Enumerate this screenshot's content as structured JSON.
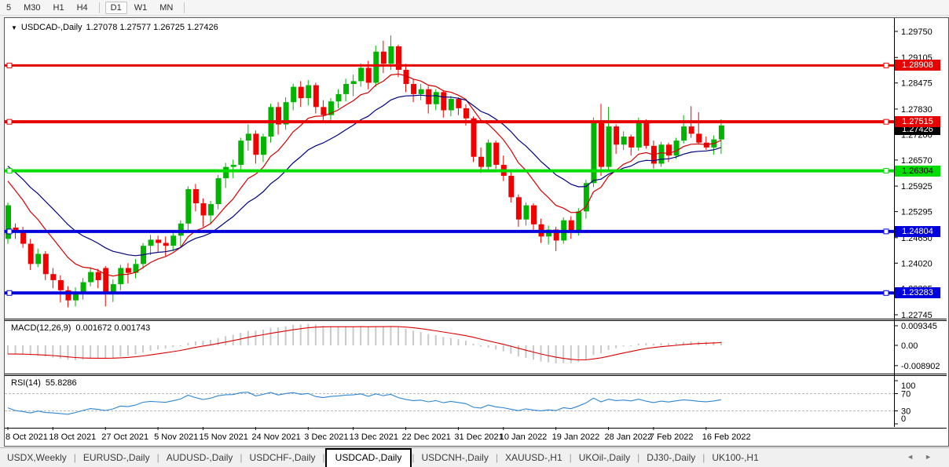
{
  "toolbar": {
    "timeframes": [
      {
        "label": "5",
        "active": false
      },
      {
        "label": "M30",
        "active": false
      },
      {
        "label": "H1",
        "active": false
      },
      {
        "label": "H4",
        "active": false
      },
      {
        "label": "D1",
        "active": true
      },
      {
        "label": "W1",
        "active": false
      },
      {
        "label": "MN",
        "active": false
      }
    ]
  },
  "chart": {
    "symbol_label": "USDCAD-,Daily",
    "ohlc_label": "1.27078 1.27577 1.26725 1.27426"
  },
  "price_axis": {
    "ticks": [
      "1.29750",
      "1.29105",
      "1.28475",
      "1.27830",
      "1.27200",
      "1.26570",
      "1.25925",
      "1.25295",
      "1.24650",
      "1.24020",
      "1.23395",
      "1.22745"
    ],
    "current_price": {
      "value": "1.27426",
      "bg": "#000000",
      "fg": "#ffffff"
    }
  },
  "hlines": [
    {
      "value": "1.28908",
      "color": "#e60000",
      "badge_fg": "#ffffff",
      "width": 3
    },
    {
      "value": "1.27515",
      "color": "#e60000",
      "badge_fg": "#ffffff",
      "width": 4
    },
    {
      "value": "1.26304",
      "color": "#00dd00",
      "badge_fg": "#000000",
      "width": 4
    },
    {
      "value": "1.24804",
      "color": "#0000dc",
      "badge_fg": "#ffffff",
      "width": 4
    },
    {
      "value": "1.23283",
      "color": "#0000dc",
      "badge_fg": "#ffffff",
      "width": 4
    }
  ],
  "indicators": {
    "macd": {
      "label": "MACD(12,26,9)",
      "values": "0.001672 0.001743",
      "axis": [
        "0.009345",
        "0.00",
        "-0.008902"
      ]
    },
    "rsi": {
      "label": "RSI(14)",
      "value": "55.8286",
      "axis": [
        "100",
        "70",
        "30",
        "0"
      ]
    }
  },
  "time_axis": {
    "ticks": [
      {
        "i": 0,
        "label": "8 Oct 2021"
      },
      {
        "i": 6,
        "label": "18 Oct 2021"
      },
      {
        "i": 13,
        "label": "27 Oct 2021"
      },
      {
        "i": 20,
        "label": "5 Nov 2021"
      },
      {
        "i": 26,
        "label": "15 Nov 2021"
      },
      {
        "i": 33,
        "label": "24 Nov 2021"
      },
      {
        "i": 40,
        "label": "3 Dec 2021"
      },
      {
        "i": 46,
        "label": "13 Dec 2021"
      },
      {
        "i": 53,
        "label": "22 Dec 2021"
      },
      {
        "i": 60,
        "label": "31 Dec 2021"
      },
      {
        "i": 66,
        "label": "10 Jan 2022"
      },
      {
        "i": 73,
        "label": "19 Jan 2022"
      },
      {
        "i": 80,
        "label": "28 Jan 2022"
      },
      {
        "i": 86,
        "label": "7 Feb 2022"
      },
      {
        "i": 93,
        "label": "16 Feb 2022"
      }
    ]
  },
  "tabs": {
    "items": [
      {
        "label": "USDX,Weekly",
        "active": false
      },
      {
        "label": "EURUSD-,Daily",
        "active": false
      },
      {
        "label": "AUDUSD-,Daily",
        "active": false
      },
      {
        "label": "USDCHF-,Daily",
        "active": false
      },
      {
        "label": "USDCAD-,Daily",
        "active": true
      },
      {
        "label": "USDCNH-,Daily",
        "active": false
      },
      {
        "label": "XAUUSD-,H1",
        "active": false
      },
      {
        "label": "UKOil-,Daily",
        "active": false
      },
      {
        "label": "DJ30-,Daily",
        "active": false
      },
      {
        "label": "UK100-,H1",
        "active": false
      }
    ],
    "scroll_left_icon": "◄",
    "scroll_right_icon": "►"
  },
  "chart_data": {
    "type": "candlestick",
    "symbol": "USDCAD",
    "timeframe": "Daily",
    "title": "USDCAD-,Daily",
    "last_bar_ohlc": {
      "open": 1.27078,
      "high": 1.27577,
      "low": 1.26725,
      "close": 1.27426
    },
    "visible_price_range": [
      1.2263,
      1.3
    ],
    "x_range_labels": [
      "8 Oct 2021",
      "16 Feb 2022"
    ],
    "bull_color": "#00b400",
    "bear_color": "#f20000",
    "ma_fast": {
      "period": 10,
      "type": "ema",
      "color": "#d40000",
      "seed": 1.2618
    },
    "ma_slow": {
      "period": 20,
      "type": "ema",
      "color": "#000080",
      "seed": 1.2652
    },
    "macd_params": {
      "fast": 12,
      "slow": 26,
      "signal": 9,
      "scale_max": 0.009345,
      "scale_min": -0.008902,
      "last_values": [
        0.001672,
        0.001743
      ],
      "hist_color": "#c9c9c9",
      "signal_color": "#e00000",
      "seed_ema_fast": 1.25,
      "seed_ema_slow": 1.2546,
      "seed_signal": -0.0038
    },
    "rsi_params": {
      "period": 14,
      "levels": [
        70,
        30
      ],
      "last_value": 55.8286,
      "color": "#2e86d2",
      "seed_avg_gain": 0.001,
      "seed_avg_loss": 0.0016,
      "seed_prev_close": 1.2558
    },
    "candles": [
      [
        1.2462,
        1.2552,
        1.245,
        1.2545
      ],
      [
        1.249,
        1.25,
        1.2462,
        1.2478
      ],
      [
        1.2478,
        1.2492,
        1.244,
        1.245
      ],
      [
        1.245,
        1.2462,
        1.2385,
        1.24
      ],
      [
        1.24,
        1.2438,
        1.2392,
        1.2425
      ],
      [
        1.2425,
        1.2432,
        1.236,
        1.2375
      ],
      [
        1.2375,
        1.239,
        1.234,
        1.236
      ],
      [
        1.236,
        1.2372,
        1.2305,
        1.2335
      ],
      [
        1.2335,
        1.2345,
        1.2293,
        1.231
      ],
      [
        1.231,
        1.2342,
        1.2295,
        1.233
      ],
      [
        1.233,
        1.2365,
        1.2312,
        1.2355
      ],
      [
        1.2355,
        1.2392,
        1.2345,
        1.238
      ],
      [
        1.238,
        1.2388,
        1.234,
        1.236
      ],
      [
        1.239,
        1.2395,
        1.2295,
        1.233
      ],
      [
        1.233,
        1.2362,
        1.2306,
        1.235
      ],
      [
        1.235,
        1.2398,
        1.2335,
        1.239
      ],
      [
        1.239,
        1.2402,
        1.2352,
        1.2378
      ],
      [
        1.2378,
        1.2412,
        1.2365,
        1.24
      ],
      [
        1.24,
        1.2452,
        1.2388,
        1.2445
      ],
      [
        1.2445,
        1.2472,
        1.2422,
        1.246
      ],
      [
        1.246,
        1.247,
        1.2428,
        1.2452
      ],
      [
        1.2452,
        1.2468,
        1.242,
        1.2445
      ],
      [
        1.2445,
        1.2482,
        1.2432,
        1.247
      ],
      [
        1.247,
        1.2508,
        1.244,
        1.25
      ],
      [
        1.25,
        1.2592,
        1.248,
        1.2585
      ],
      [
        1.2585,
        1.2598,
        1.253,
        1.255
      ],
      [
        1.255,
        1.2562,
        1.2492,
        1.252
      ],
      [
        1.252,
        1.2556,
        1.2498,
        1.2548
      ],
      [
        1.2548,
        1.262,
        1.2535,
        1.2612
      ],
      [
        1.2612,
        1.265,
        1.2588,
        1.264
      ],
      [
        1.264,
        1.2658,
        1.2612,
        1.2645
      ],
      [
        1.2645,
        1.2712,
        1.2628,
        1.2705
      ],
      [
        1.2705,
        1.2745,
        1.268,
        1.2722
      ],
      [
        1.2722,
        1.273,
        1.2648,
        1.267
      ],
      [
        1.267,
        1.2722,
        1.2652,
        1.2715
      ],
      [
        1.2715,
        1.2796,
        1.27,
        1.2788
      ],
      [
        1.2788,
        1.28,
        1.272,
        1.2745
      ],
      [
        1.2745,
        1.2812,
        1.2732,
        1.28
      ],
      [
        1.28,
        1.2846,
        1.278,
        1.2838
      ],
      [
        1.2838,
        1.2852,
        1.2788,
        1.281
      ],
      [
        1.281,
        1.2855,
        1.2792,
        1.2842
      ],
      [
        1.2842,
        1.2848,
        1.2772,
        1.2788
      ],
      [
        1.2788,
        1.2805,
        1.2752,
        1.2768
      ],
      [
        1.2768,
        1.281,
        1.2755,
        1.2802
      ],
      [
        1.2802,
        1.2832,
        1.2785,
        1.282
      ],
      [
        1.282,
        1.2858,
        1.2802,
        1.2845
      ],
      [
        1.2845,
        1.2868,
        1.2815,
        1.2852
      ],
      [
        1.2852,
        1.2896,
        1.2838,
        1.2885
      ],
      [
        1.2885,
        1.2902,
        1.2832,
        1.2848
      ],
      [
        1.2848,
        1.294,
        1.2838,
        1.2925
      ],
      [
        1.2925,
        1.2952,
        1.2872,
        1.2895
      ],
      [
        1.2895,
        1.2965,
        1.288,
        1.2938
      ],
      [
        1.2938,
        1.2942,
        1.2862,
        1.288
      ],
      [
        1.288,
        1.2895,
        1.2825,
        1.2845
      ],
      [
        1.2845,
        1.2858,
        1.28,
        1.282
      ],
      [
        1.282,
        1.2845,
        1.2805,
        1.2832
      ],
      [
        1.2832,
        1.284,
        1.2772,
        1.2795
      ],
      [
        1.2795,
        1.2832,
        1.278,
        1.2825
      ],
      [
        1.2825,
        1.283,
        1.2762,
        1.278
      ],
      [
        1.278,
        1.2815,
        1.2765,
        1.2808
      ],
      [
        1.2808,
        1.2812,
        1.2768,
        1.2785
      ],
      [
        1.2785,
        1.2795,
        1.2742,
        1.276
      ],
      [
        1.276,
        1.2765,
        1.2652,
        1.2665
      ],
      [
        1.2665,
        1.2688,
        1.2625,
        1.264
      ],
      [
        1.264,
        1.2708,
        1.2632,
        1.27
      ],
      [
        1.27,
        1.2705,
        1.2635,
        1.2645
      ],
      [
        1.2645,
        1.2668,
        1.2605,
        1.2618
      ],
      [
        1.2618,
        1.2628,
        1.2552,
        1.2565
      ],
      [
        1.2565,
        1.2572,
        1.2492,
        1.251
      ],
      [
        1.251,
        1.2552,
        1.2495,
        1.2545
      ],
      [
        1.2545,
        1.255,
        1.2482,
        1.2498
      ],
      [
        1.2498,
        1.2512,
        1.2452,
        1.2468
      ],
      [
        1.2468,
        1.2495,
        1.2448,
        1.2485
      ],
      [
        1.2485,
        1.2492,
        1.2432,
        1.2458
      ],
      [
        1.2458,
        1.2515,
        1.245,
        1.2508
      ],
      [
        1.2508,
        1.2518,
        1.2462,
        1.2478
      ],
      [
        1.2478,
        1.2538,
        1.247,
        1.253
      ],
      [
        1.253,
        1.2608,
        1.2512,
        1.26
      ],
      [
        1.26,
        1.2762,
        1.259,
        1.2748
      ],
      [
        1.2748,
        1.2796,
        1.2618,
        1.264
      ],
      [
        1.264,
        1.2788,
        1.263,
        1.274
      ],
      [
        1.274,
        1.2745,
        1.2672,
        1.2695
      ],
      [
        1.2695,
        1.2728,
        1.2682,
        1.2715
      ],
      [
        1.2715,
        1.272,
        1.2668,
        1.2688
      ],
      [
        1.2688,
        1.2762,
        1.268,
        1.275
      ],
      [
        1.275,
        1.2758,
        1.2685,
        1.2692
      ],
      [
        1.2692,
        1.2705,
        1.2636,
        1.2648
      ],
      [
        1.2648,
        1.2702,
        1.264,
        1.2695
      ],
      [
        1.2695,
        1.27,
        1.2652,
        1.2668
      ],
      [
        1.2668,
        1.2712,
        1.266,
        1.2705
      ],
      [
        1.2705,
        1.2768,
        1.2698,
        1.274
      ],
      [
        1.274,
        1.279,
        1.2712,
        1.2722
      ],
      [
        1.2722,
        1.2775,
        1.2695,
        1.27
      ],
      [
        1.27,
        1.2715,
        1.2682,
        1.2688
      ],
      [
        1.2688,
        1.2718,
        1.267,
        1.2708
      ],
      [
        1.27078,
        1.27577,
        1.26725,
        1.27426
      ]
    ]
  }
}
